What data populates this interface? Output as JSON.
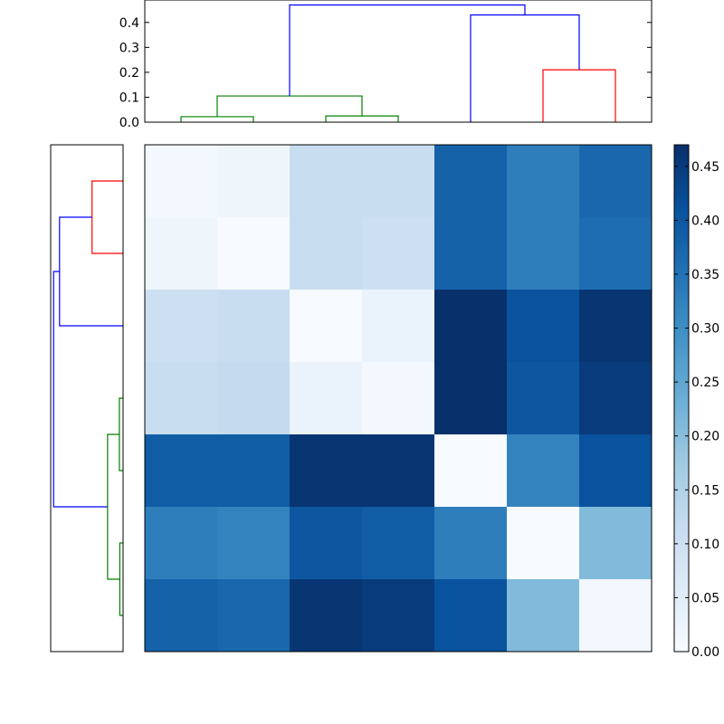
{
  "chart_data": {
    "type": "heatmap",
    "title": "",
    "xlabel": "",
    "ylabel": "",
    "colormap": "Blues",
    "colors": {
      "cluster_a": "#ff0000",
      "cluster_b": "#008000",
      "link": "#0000ff"
    },
    "matrix": [
      [
        0.01,
        0.02,
        0.11,
        0.11,
        0.38,
        0.33,
        0.37
      ],
      [
        0.02,
        0.0,
        0.11,
        0.1,
        0.38,
        0.33,
        0.36
      ],
      [
        0.1,
        0.11,
        0.0,
        0.03,
        0.47,
        0.41,
        0.46
      ],
      [
        0.11,
        0.12,
        0.03,
        0.01,
        0.47,
        0.4,
        0.45
      ],
      [
        0.39,
        0.39,
        0.46,
        0.46,
        0.0,
        0.32,
        0.41
      ],
      [
        0.33,
        0.32,
        0.4,
        0.39,
        0.33,
        0.0,
        0.21
      ],
      [
        0.38,
        0.37,
        0.46,
        0.45,
        0.41,
        0.21,
        0.01
      ]
    ],
    "colorbar": {
      "vmin": 0.0,
      "vmax": 0.47,
      "ticks": [
        "0.00",
        "0.05",
        "0.10",
        "0.15",
        "0.20",
        "0.25",
        "0.30",
        "0.35",
        "0.40",
        "0.45"
      ]
    },
    "top_dendrogram": {
      "ylim": [
        0,
        0.49
      ],
      "yticks": [
        "0.0",
        "0.1",
        "0.2",
        "0.3",
        "0.4"
      ],
      "leaf_count": 7,
      "merges": [
        {
          "left": 0.5,
          "right": 1.5,
          "height": 0.022,
          "lh": 0,
          "rh": 0,
          "color": "#008000"
        },
        {
          "left": 2.5,
          "right": 3.5,
          "height": 0.025,
          "lh": 0,
          "rh": 0,
          "color": "#008000"
        },
        {
          "left": 1.0,
          "right": 3.0,
          "height": 0.105,
          "lh": 0.022,
          "rh": 0.025,
          "color": "#008000"
        },
        {
          "left": 5.5,
          "right": 6.5,
          "height": 0.21,
          "lh": 0,
          "rh": 0,
          "color": "#ff0000"
        },
        {
          "left": 4.5,
          "right": 6.0,
          "height": 0.43,
          "lh": 0,
          "rh": 0.21,
          "color": "#0000ff"
        },
        {
          "left": 2.0,
          "right": 5.25,
          "height": 0.47,
          "lh": 0.105,
          "rh": 0.43,
          "color": "#0000ff"
        }
      ]
    },
    "left_dendrogram": {
      "xlim": [
        0,
        0.49
      ],
      "leaf_count": 7,
      "merges": [
        {
          "a": 0.5,
          "b": 1.5,
          "height": 0.21,
          "ah": 0,
          "bh": 0,
          "color": "#ff0000"
        },
        {
          "a": 1.0,
          "b": 2.5,
          "height": 0.43,
          "ah": 0.21,
          "bh": 0,
          "color": "#0000ff"
        },
        {
          "a": 3.5,
          "b": 4.5,
          "height": 0.025,
          "ah": 0,
          "bh": 0,
          "color": "#008000"
        },
        {
          "a": 5.5,
          "b": 6.5,
          "height": 0.022,
          "ah": 0,
          "bh": 0,
          "color": "#008000"
        },
        {
          "a": 4.0,
          "b": 6.0,
          "height": 0.105,
          "ah": 0.025,
          "bh": 0.022,
          "color": "#008000"
        },
        {
          "a": 1.75,
          "b": 5.0,
          "height": 0.47,
          "ah": 0.43,
          "bh": 0.105,
          "color": "#0000ff"
        }
      ]
    }
  }
}
